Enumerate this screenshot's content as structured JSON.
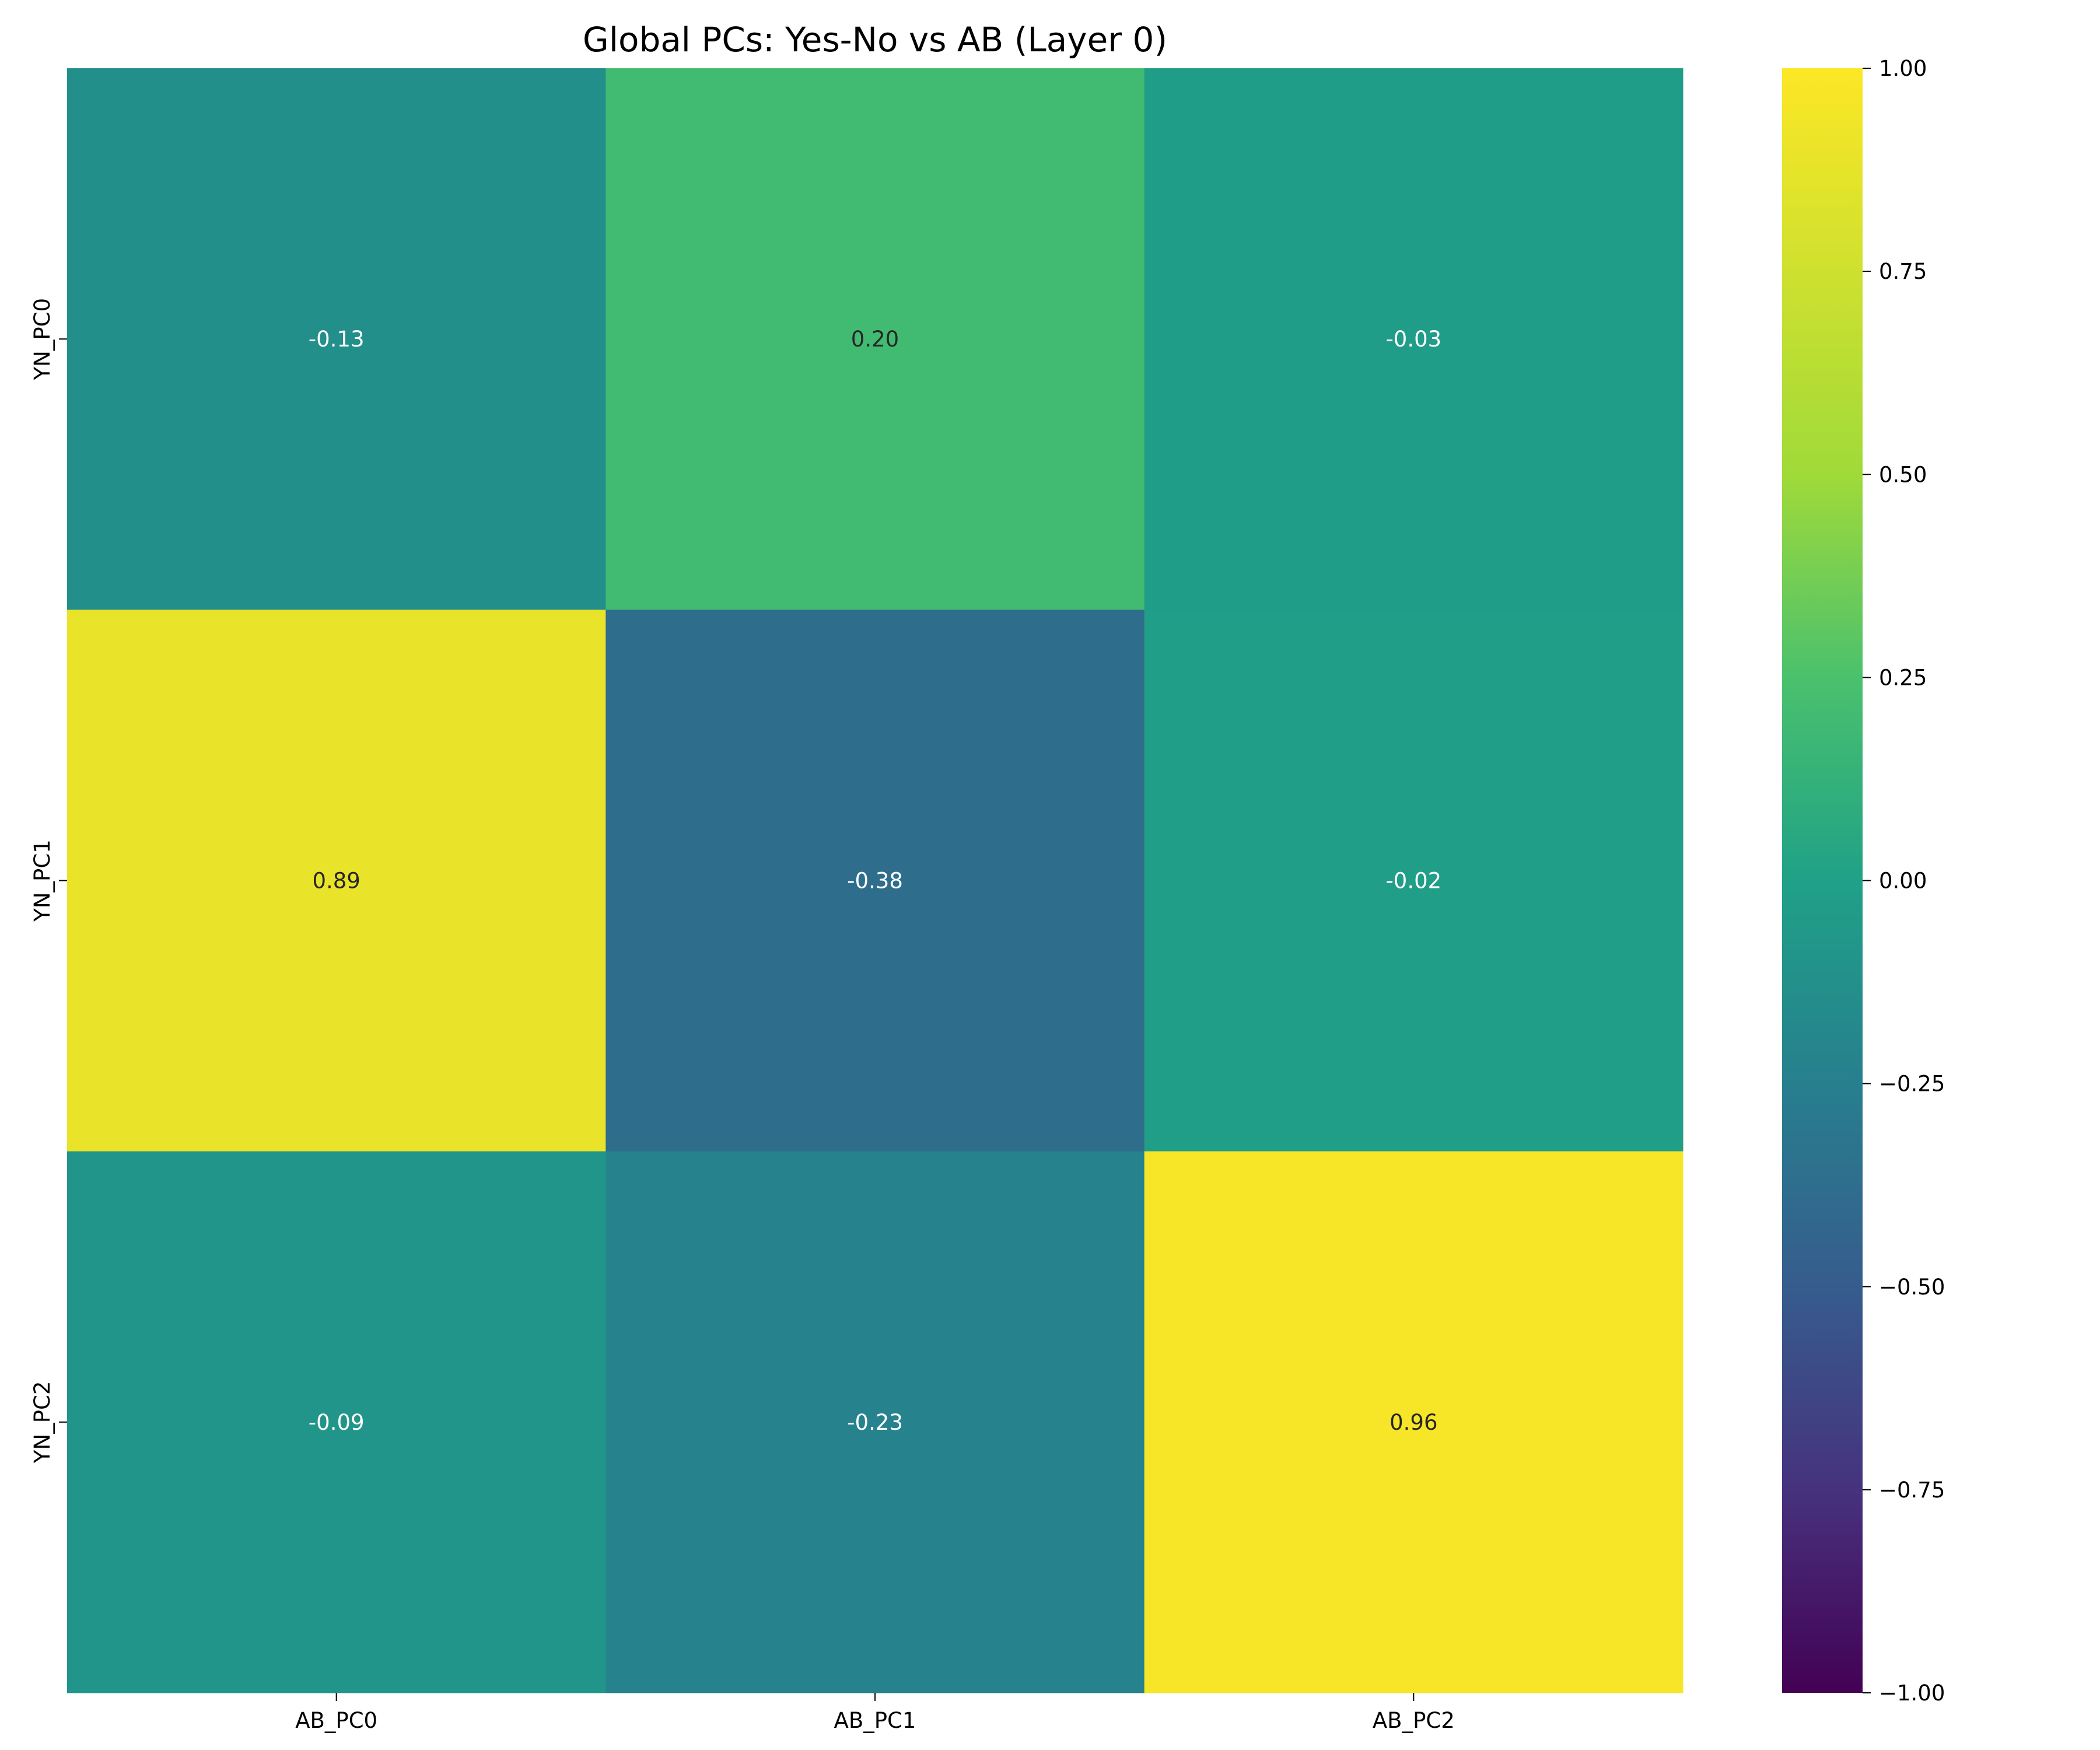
{
  "chart_data": {
    "type": "heatmap",
    "title": "Global PCs: Yes-No vs AB (Layer 0)",
    "xlabel": "",
    "ylabel": "",
    "x_categories": [
      "AB_PC0",
      "AB_PC1",
      "AB_PC2"
    ],
    "y_categories": [
      "YN_PC0",
      "YN_PC1",
      "YN_PC2"
    ],
    "values": [
      [
        -0.13,
        0.2,
        -0.03
      ],
      [
        0.89,
        -0.38,
        -0.02
      ],
      [
        -0.09,
        -0.23,
        0.96
      ]
    ],
    "value_labels": [
      [
        "-0.13",
        "0.20",
        "-0.03"
      ],
      [
        "0.89",
        "-0.38",
        "-0.02"
      ],
      [
        "-0.09",
        "-0.23",
        "0.96"
      ]
    ],
    "colormap": "viridis",
    "vmin": -1.0,
    "vmax": 1.0,
    "colorbar": {
      "ticks": [
        1.0,
        0.75,
        0.5,
        0.25,
        0.0,
        -0.25,
        -0.5,
        -0.75,
        -1.0
      ],
      "tick_labels": [
        "1.00",
        "0.75",
        "0.50",
        "0.25",
        "0.00",
        "−0.25",
        "−0.50",
        "−0.75",
        "−1.00"
      ]
    },
    "grid": false
  }
}
